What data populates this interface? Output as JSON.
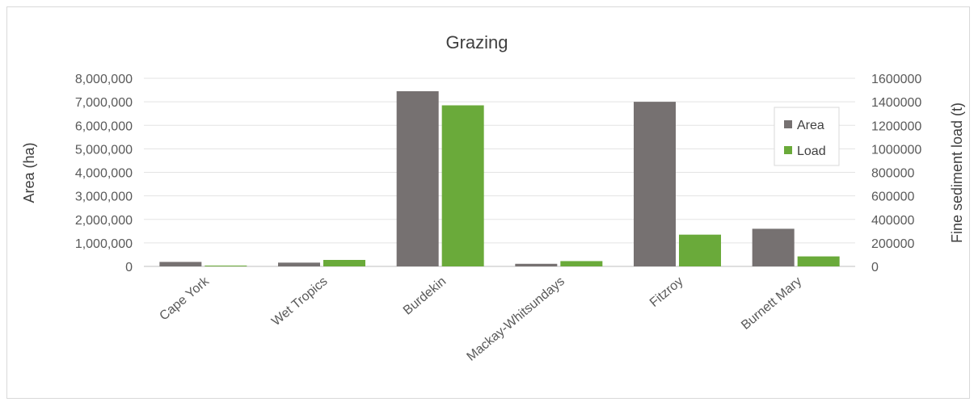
{
  "chart_data": {
    "type": "bar",
    "title": "Grazing",
    "categories": [
      "Cape York",
      "Wet Tropics",
      "Burdekin",
      "Mackay-Whitsundays",
      "Fitzroy",
      "Burnett Mary"
    ],
    "series": [
      {
        "name": "Area",
        "axis": "left",
        "color": "#767171",
        "values": [
          190000,
          160000,
          7450000,
          110000,
          7000000,
          1600000
        ]
      },
      {
        "name": "Load",
        "axis": "right",
        "color": "#6aaa3a",
        "values": [
          6000,
          55000,
          1370000,
          45000,
          270000,
          85000
        ]
      }
    ],
    "ylabel": "Area (ha)",
    "y2label": "Fine sediment load (t)",
    "ylim": [
      0,
      8000000
    ],
    "y2lim": [
      0,
      1600000
    ],
    "y_ticks": [
      "0",
      "1,000,000",
      "2,000,000",
      "3,000,000",
      "4,000,000",
      "5,000,000",
      "6,000,000",
      "7,000,000",
      "8,000,000"
    ],
    "y2_ticks": [
      "0",
      "200000",
      "400000",
      "600000",
      "800000",
      "1000000",
      "1200000",
      "1400000",
      "1600000"
    ],
    "grid": true,
    "legend_position": "top-right"
  }
}
